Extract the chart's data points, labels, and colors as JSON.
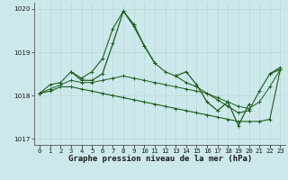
{
  "title": "Graphe pression niveau de la mer (hPa)",
  "background_color": "#cde8ea",
  "grid_color_v": "#b8d8db",
  "grid_color_h": "#b8d8db",
  "line_color": "#1e5c1e",
  "x_labels": [
    "0",
    "1",
    "2",
    "3",
    "4",
    "5",
    "6",
    "7",
    "8",
    "9",
    "10",
    "11",
    "12",
    "13",
    "14",
    "15",
    "16",
    "17",
    "18",
    "19",
    "20",
    "21",
    "22",
    "23"
  ],
  "hours": [
    0,
    1,
    2,
    3,
    4,
    5,
    6,
    7,
    8,
    9,
    10,
    11,
    12,
    13,
    14,
    15,
    16,
    17,
    18,
    19,
    20,
    21,
    22,
    23
  ],
  "series_line1": [
    1018.05,
    1018.25,
    1018.3,
    1018.55,
    1018.4,
    1018.55,
    1018.85,
    1019.55,
    1019.95,
    1019.65,
    1019.15,
    1018.75,
    1018.55,
    1018.45,
    1018.3,
    1018.2,
    1018.05,
    1017.9,
    1017.75,
    1017.6,
    1017.65,
    1018.1,
    1018.5,
    1018.6
  ],
  "series_line2": [
    1018.05,
    null,
    null,
    1018.55,
    1018.35,
    1018.35,
    1018.5,
    1019.2,
    1019.95,
    1019.6,
    1019.15,
    1018.75,
    null,
    1018.45,
    1018.55,
    1018.25,
    1017.85,
    1017.65,
    1017.85,
    1017.3,
    1017.8,
    null,
    1018.5,
    1018.65
  ],
  "series_line3": [
    1018.05,
    1018.1,
    1018.2,
    1018.2,
    1018.15,
    1018.1,
    1018.05,
    1018.0,
    1017.95,
    1017.9,
    1017.85,
    1017.8,
    1017.75,
    1017.7,
    1017.65,
    1017.6,
    1017.55,
    1017.5,
    1017.45,
    1017.4,
    1017.4,
    1017.4,
    1017.45,
    1018.6
  ],
  "series_line4": [
    1018.05,
    1018.15,
    1018.25,
    1018.35,
    1018.3,
    1018.3,
    1018.35,
    1018.4,
    1018.45,
    1018.4,
    1018.35,
    1018.3,
    1018.25,
    1018.2,
    1018.15,
    1018.1,
    1018.05,
    1017.95,
    1017.85,
    1017.75,
    1017.7,
    1017.85,
    1018.2,
    1018.6
  ],
  "ylim": [
    1016.85,
    1020.15
  ],
  "yticks": [
    1017,
    1018,
    1019,
    1020
  ],
  "marker_size": 2.0,
  "title_fontsize": 6.5,
  "tick_fontsize": 5.2
}
